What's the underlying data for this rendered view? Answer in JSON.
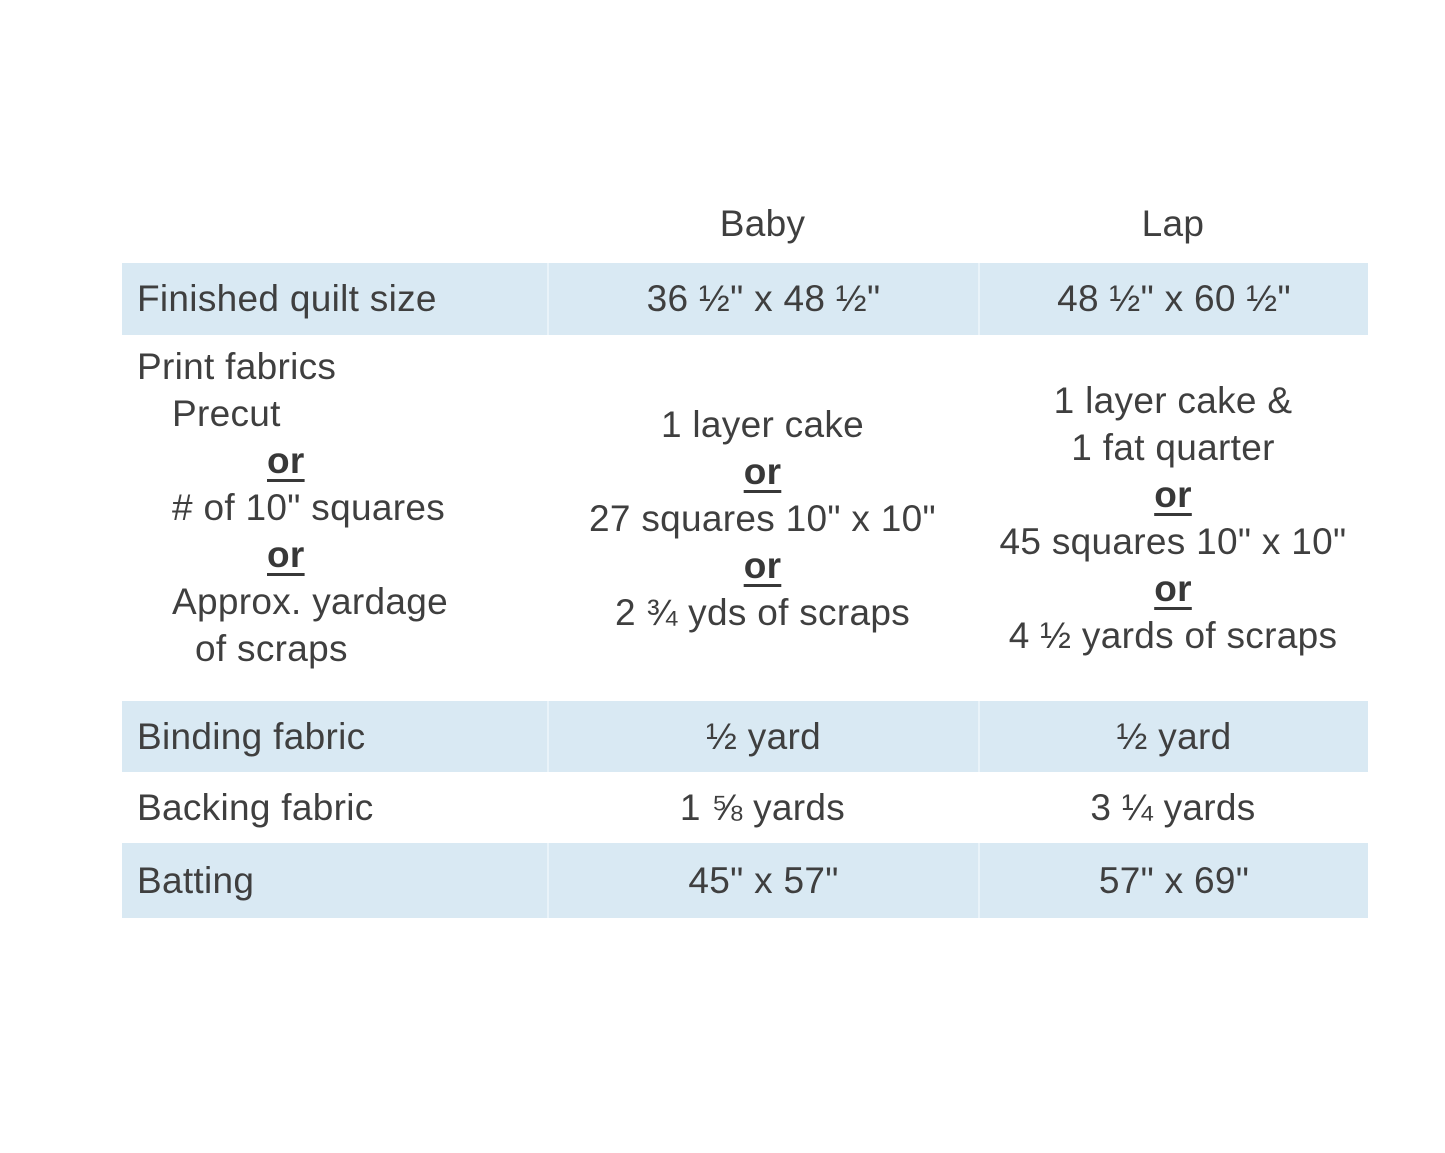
{
  "table": {
    "highlight_color": "#d9e9f3",
    "text_color": "#3f3f3f",
    "columns": [
      "Baby",
      "Lap"
    ],
    "rows": {
      "finished": {
        "label": "Finished quilt size",
        "baby": "36 ½\" x 48 ½\"",
        "lap": "48 ½\" x 60 ½\""
      },
      "print": {
        "label_lines": [
          {
            "text": "Print fabrics",
            "style": "plain"
          },
          {
            "text": "Precut",
            "style": "indent"
          },
          {
            "text": "or",
            "style": "or-left"
          },
          {
            "text": "# of 10\" squares",
            "style": "indent"
          },
          {
            "text": "or",
            "style": "or-left"
          },
          {
            "text": "Approx. yardage",
            "style": "indent"
          },
          {
            "text": "of scraps",
            "style": "indent2"
          }
        ],
        "baby_lines": [
          {
            "text": "1 layer cake",
            "style": "center"
          },
          {
            "text": "or",
            "style": "or"
          },
          {
            "text": "27 squares 10\" x 10\"",
            "style": "center"
          },
          {
            "text": "or",
            "style": "or"
          },
          {
            "text": "2 ¾ yds of scraps",
            "style": "center"
          }
        ],
        "lap_lines": [
          {
            "text": "1 layer cake &",
            "style": "center"
          },
          {
            "text": "1 fat quarter",
            "style": "center"
          },
          {
            "text": "or",
            "style": "or"
          },
          {
            "text": "45 squares 10\" x 10\"",
            "style": "center"
          },
          {
            "text": "or",
            "style": "or"
          },
          {
            "text": "4 ½ yards of scraps",
            "style": "center"
          }
        ]
      },
      "binding": {
        "label": "Binding fabric",
        "baby": "½ yard",
        "lap": "½ yard"
      },
      "backing": {
        "label": "Backing fabric",
        "baby": "1 ⅝ yards",
        "lap": "3 ¼ yards"
      },
      "batting": {
        "label": "Batting",
        "baby": "45\" x 57\"",
        "lap": "57\" x 69\""
      }
    }
  }
}
